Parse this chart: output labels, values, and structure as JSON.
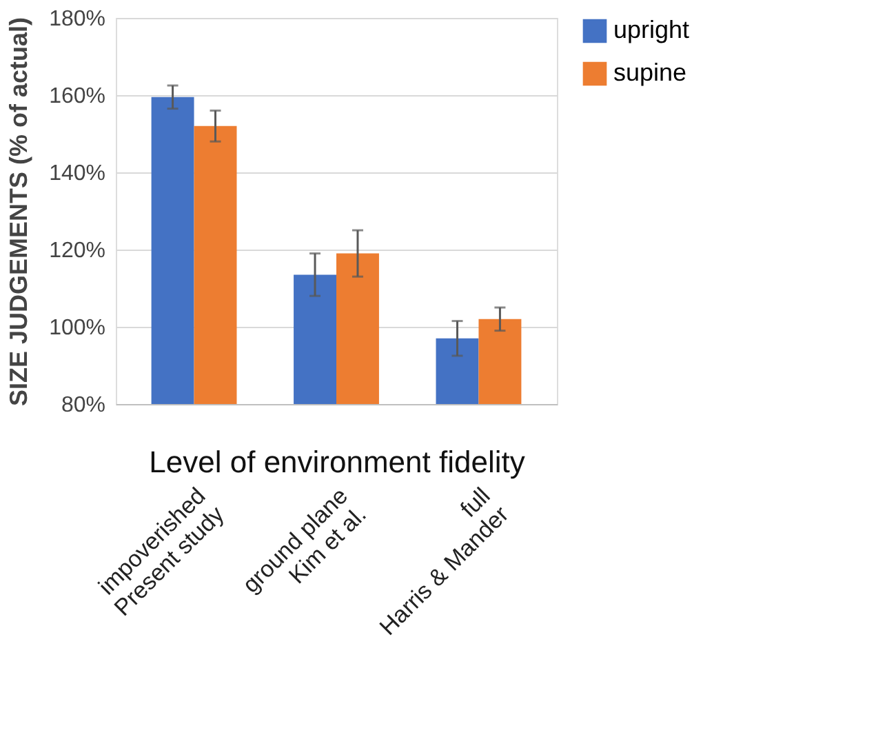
{
  "chart_data": {
    "type": "bar",
    "categories": [
      "impoverished\nPresent study",
      "ground plane\nKim et al.",
      "full\nHarris & Mander"
    ],
    "series": [
      {
        "name": "upright",
        "color": "#4472c4",
        "values": [
          159.5,
          113.5,
          97
        ],
        "errors": [
          3,
          5.5,
          4.5
        ]
      },
      {
        "name": "supine",
        "color": "#ed7d31",
        "values": [
          152,
          119,
          102
        ],
        "errors": [
          4,
          6,
          3
        ]
      }
    ],
    "xlabel": "Level of environment fidelity",
    "ylabel": "SIZE JUDGEMENTS (% of actual)",
    "ylim": [
      80,
      180
    ],
    "yticks": [
      {
        "value": 80,
        "label": "80%"
      },
      {
        "value": 100,
        "label": "100%"
      },
      {
        "value": 120,
        "label": "120%"
      },
      {
        "value": 140,
        "label": "140%"
      },
      {
        "value": 160,
        "label": "160%"
      },
      {
        "value": 180,
        "label": "180%"
      }
    ],
    "grid": "y",
    "legend": "right"
  }
}
